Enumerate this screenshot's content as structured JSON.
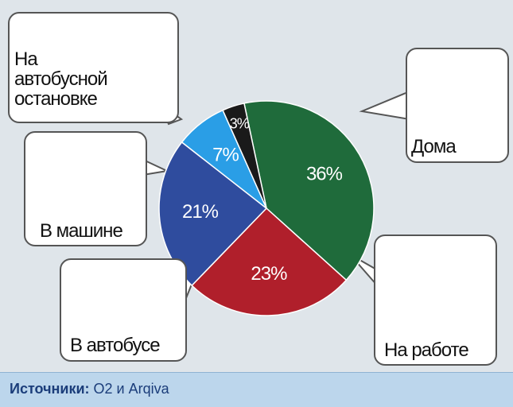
{
  "chart_data": {
    "type": "pie",
    "categories": [
      "Дома",
      "На работе",
      "В автобусе",
      "В машине",
      "На автобусной остановке"
    ],
    "values": [
      36,
      23,
      21,
      7,
      3
    ],
    "value_labels": [
      "36%",
      "23%",
      "21%",
      "7%",
      "3%"
    ],
    "colors": [
      "#1f6b3b",
      "#b01f2b",
      "#2f4c9e",
      "#2a9ee6",
      "#1a1a1a"
    ],
    "source_label": "Источники:",
    "source_text": "O2 и Arqiva"
  }
}
